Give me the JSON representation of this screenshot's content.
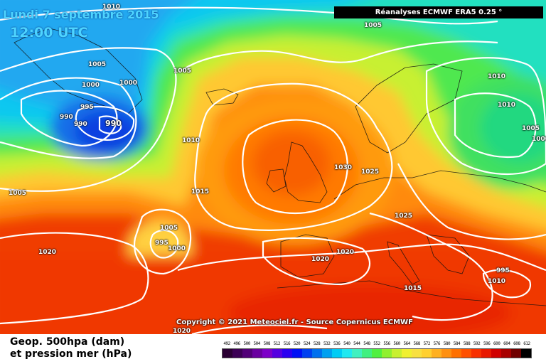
{
  "header": {
    "date": "Lundi 7 septembre 2015",
    "time": "12:00 UTC",
    "source": "Réanalyses ECMWF ERA5 0.25 °"
  },
  "copyright": "Copyright © 2021 Meteociel.fr - Source Copernicus ECMWF",
  "legend": {
    "title_line1": "Geop. 500hpa (dam)",
    "title_line2": "et pression mer (hPa)",
    "scale": [
      {
        "label": "492",
        "color": "#2a0033"
      },
      {
        "label": "496",
        "color": "#3c0055"
      },
      {
        "label": "500",
        "color": "#520078"
      },
      {
        "label": "504",
        "color": "#6a00a0"
      },
      {
        "label": "508",
        "color": "#7d00c8"
      },
      {
        "label": "512",
        "color": "#5500e0"
      },
      {
        "label": "516",
        "color": "#2a00f0"
      },
      {
        "label": "520",
        "color": "#0010f5"
      },
      {
        "label": "524",
        "color": "#0040f0"
      },
      {
        "label": "528",
        "color": "#0070ee"
      },
      {
        "label": "532",
        "color": "#00a0f0"
      },
      {
        "label": "536",
        "color": "#00ccf5"
      },
      {
        "label": "540",
        "color": "#20e8f0"
      },
      {
        "label": "544",
        "color": "#40f0c0"
      },
      {
        "label": "548",
        "color": "#40f080"
      },
      {
        "label": "552",
        "color": "#50f040"
      },
      {
        "label": "556",
        "color": "#90f030"
      },
      {
        "label": "560",
        "color": "#c8f030"
      },
      {
        "label": "564",
        "color": "#f0f030"
      },
      {
        "label": "568",
        "color": "#f8e040"
      },
      {
        "label": "572",
        "color": "#ffd030"
      },
      {
        "label": "576",
        "color": "#ffb020"
      },
      {
        "label": "580",
        "color": "#ff9010"
      },
      {
        "label": "584",
        "color": "#ff7000"
      },
      {
        "label": "588",
        "color": "#ff5000"
      },
      {
        "label": "592",
        "color": "#f83000"
      },
      {
        "label": "596",
        "color": "#e81800"
      },
      {
        "label": "600",
        "color": "#d00000"
      },
      {
        "label": "604",
        "color": "#a80000"
      },
      {
        "label": "608",
        "color": "#700000"
      },
      {
        "label": "612",
        "color": "#000000"
      }
    ]
  },
  "isobars": [
    {
      "id": "a1",
      "text": "1010"
    },
    {
      "id": "a2",
      "text": "1005"
    },
    {
      "id": "a3",
      "text": "1005"
    },
    {
      "id": "a4",
      "text": "1000"
    },
    {
      "id": "a5",
      "text": "1000"
    },
    {
      "id": "a6",
      "text": "995"
    },
    {
      "id": "a7",
      "text": "990"
    },
    {
      "id": "a8",
      "text": "990"
    },
    {
      "id": "a9",
      "text": "990"
    },
    {
      "id": "a10",
      "text": "1005"
    },
    {
      "id": "a11",
      "text": "1010"
    },
    {
      "id": "a12",
      "text": "1005"
    },
    {
      "id": "a13",
      "text": "1015"
    },
    {
      "id": "a14",
      "text": "1005"
    },
    {
      "id": "a15",
      "text": "995"
    },
    {
      "id": "a16",
      "text": "1000"
    },
    {
      "id": "a17",
      "text": "1020"
    },
    {
      "id": "a18",
      "text": "1030"
    },
    {
      "id": "a19",
      "text": "1025"
    },
    {
      "id": "a20",
      "text": "1025"
    },
    {
      "id": "a21",
      "text": "1020"
    },
    {
      "id": "a22",
      "text": "1020"
    },
    {
      "id": "a23",
      "text": "1015"
    },
    {
      "id": "a24",
      "text": "1010"
    },
    {
      "id": "a25",
      "text": "1010"
    },
    {
      "id": "a26",
      "text": "1005"
    },
    {
      "id": "a27",
      "text": "1000"
    },
    {
      "id": "a28",
      "text": "995"
    },
    {
      "id": "a29",
      "text": "1010"
    },
    {
      "id": "a30",
      "text": "1020"
    }
  ]
}
